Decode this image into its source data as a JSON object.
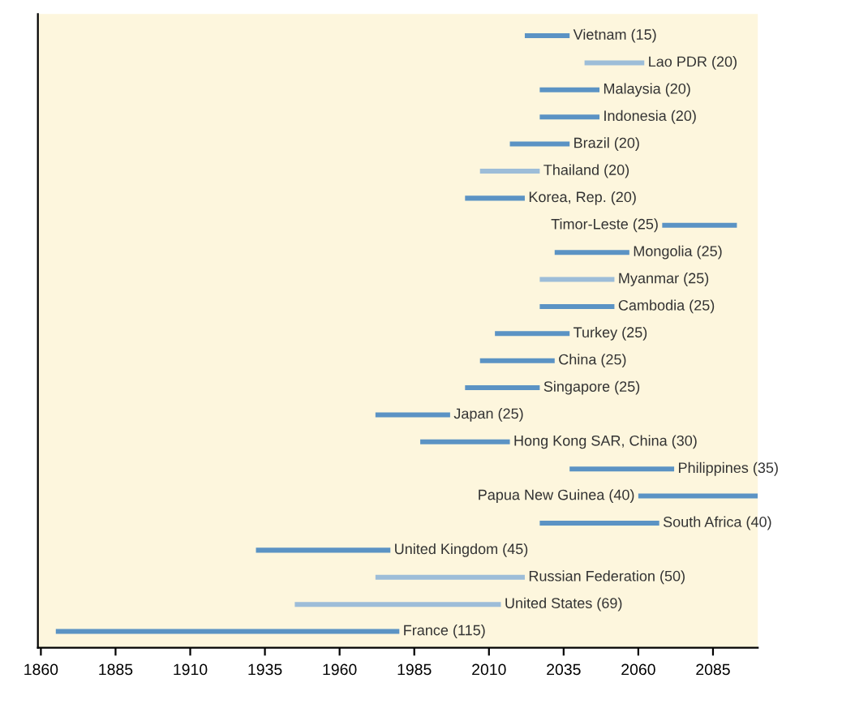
{
  "chart_data": {
    "type": "bar",
    "orientation": "horizontal",
    "categories": [
      "Vietnam",
      "Lao PDR",
      "Malaysia",
      "Indonesia",
      "Brazil",
      "Thailand",
      "Korea, Rep.",
      "Timor-Leste",
      "Mongolia",
      "Myanmar",
      "Cambodia",
      "Turkey",
      "China",
      "Singapore",
      "Japan",
      "Hong Kong SAR, China",
      "Philippines",
      "Papua New Guinea",
      "South Africa",
      "United Kingdom",
      "Russian Federation",
      "United States",
      "France"
    ],
    "base": [
      2022,
      2042,
      2027,
      2027,
      2017,
      2007,
      2002,
      2068,
      2032,
      2027,
      2027,
      2012,
      2007,
      2002,
      1972,
      1987,
      2037,
      2060,
      2027,
      1932,
      1972,
      1945,
      1865
    ],
    "values": [
      15,
      20,
      20,
      20,
      20,
      20,
      20,
      25,
      25,
      25,
      25,
      25,
      25,
      25,
      25,
      30,
      35,
      40,
      40,
      45,
      50,
      69,
      115
    ],
    "value_labels": [
      "(15)",
      "(20)",
      "(20)",
      "(20)",
      "(20)",
      "(20)",
      "(20)",
      "(25)",
      "(25)",
      "(25)",
      "(25)",
      "(25)",
      "(25)",
      "(25)",
      "(25)",
      "(30)",
      "(35)",
      "(40)",
      "(40)",
      "(45)",
      "(50)",
      "(69)",
      "(115)"
    ],
    "colors": [
      "#5b93c4",
      "#9dbdd8",
      "#5b93c4",
      "#5b93c4",
      "#5b93c4",
      "#9dbdd8",
      "#5b93c4",
      "#5b93c4",
      "#5b93c4",
      "#9dbdd8",
      "#5b93c4",
      "#5b93c4",
      "#5b93c4",
      "#5b93c4",
      "#5b93c4",
      "#5b93c4",
      "#5b93c4",
      "#5b93c4",
      "#5b93c4",
      "#5b93c4",
      "#9dbdd8",
      "#9dbdd8",
      "#5b93c4"
    ],
    "xlim": [
      1859,
      2100
    ],
    "xticks": [
      1860,
      1885,
      1910,
      1935,
      1960,
      1985,
      2010,
      2035,
      2060,
      2085
    ],
    "tick_labels": "x",
    "grid": false,
    "legend": false
  }
}
